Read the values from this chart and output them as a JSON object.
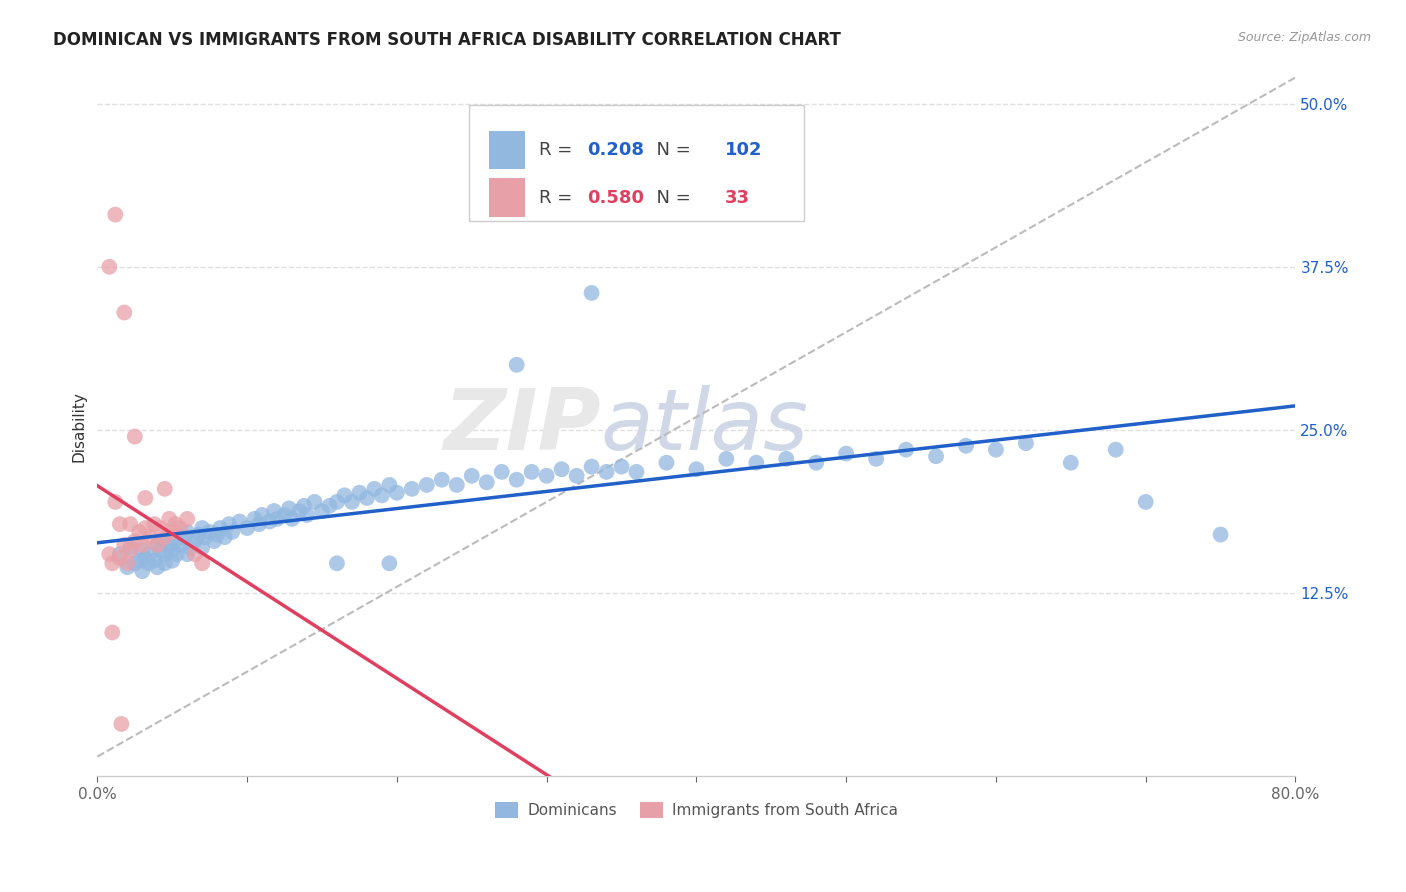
{
  "title": "DOMINICAN VS IMMIGRANTS FROM SOUTH AFRICA DISABILITY CORRELATION CHART",
  "source": "Source: ZipAtlas.com",
  "ylabel": "Disability",
  "xlim": [
    0.0,
    0.8
  ],
  "ylim": [
    0.0,
    0.52
  ],
  "blue_color": "#92b8e0",
  "pink_color": "#e8a0a8",
  "blue_line_color": "#2060c8",
  "pink_line_color": "#e04060",
  "watermark_zip": "ZIP",
  "watermark_atlas": "atlas",
  "legend_r_blue": "0.208",
  "legend_n_blue": "102",
  "legend_r_pink": "0.580",
  "legend_n_pink": "33",
  "blue_scatter_x": [
    0.015,
    0.02,
    0.022,
    0.025,
    0.028,
    0.03,
    0.03,
    0.032,
    0.034,
    0.035,
    0.038,
    0.04,
    0.04,
    0.042,
    0.043,
    0.045,
    0.045,
    0.048,
    0.05,
    0.05,
    0.052,
    0.053,
    0.055,
    0.058,
    0.06,
    0.06,
    0.062,
    0.065,
    0.068,
    0.07,
    0.07,
    0.072,
    0.075,
    0.078,
    0.08,
    0.082,
    0.085,
    0.088,
    0.09,
    0.095,
    0.1,
    0.105,
    0.108,
    0.11,
    0.115,
    0.118,
    0.12,
    0.125,
    0.128,
    0.13,
    0.135,
    0.138,
    0.14,
    0.145,
    0.15,
    0.155,
    0.16,
    0.165,
    0.17,
    0.175,
    0.18,
    0.185,
    0.19,
    0.195,
    0.2,
    0.21,
    0.22,
    0.23,
    0.24,
    0.25,
    0.26,
    0.27,
    0.28,
    0.29,
    0.3,
    0.31,
    0.32,
    0.33,
    0.34,
    0.35,
    0.36,
    0.38,
    0.4,
    0.42,
    0.44,
    0.46,
    0.48,
    0.5,
    0.52,
    0.54,
    0.56,
    0.58,
    0.6,
    0.62,
    0.65,
    0.68,
    0.7,
    0.75,
    0.28,
    0.33,
    0.16,
    0.195
  ],
  "blue_scatter_y": [
    0.155,
    0.145,
    0.16,
    0.148,
    0.15,
    0.142,
    0.158,
    0.152,
    0.148,
    0.155,
    0.15,
    0.162,
    0.145,
    0.158,
    0.165,
    0.155,
    0.148,
    0.162,
    0.158,
    0.15,
    0.165,
    0.155,
    0.162,
    0.168,
    0.155,
    0.172,
    0.16,
    0.165,
    0.17,
    0.16,
    0.175,
    0.168,
    0.172,
    0.165,
    0.17,
    0.175,
    0.168,
    0.178,
    0.172,
    0.18,
    0.175,
    0.182,
    0.178,
    0.185,
    0.18,
    0.188,
    0.182,
    0.185,
    0.19,
    0.182,
    0.188,
    0.192,
    0.185,
    0.195,
    0.188,
    0.192,
    0.195,
    0.2,
    0.195,
    0.202,
    0.198,
    0.205,
    0.2,
    0.208,
    0.202,
    0.205,
    0.208,
    0.212,
    0.208,
    0.215,
    0.21,
    0.218,
    0.212,
    0.218,
    0.215,
    0.22,
    0.215,
    0.222,
    0.218,
    0.222,
    0.218,
    0.225,
    0.22,
    0.228,
    0.225,
    0.228,
    0.225,
    0.232,
    0.228,
    0.235,
    0.23,
    0.238,
    0.235,
    0.24,
    0.225,
    0.235,
    0.195,
    0.17,
    0.3,
    0.355,
    0.148,
    0.148
  ],
  "pink_scatter_x": [
    0.008,
    0.01,
    0.012,
    0.015,
    0.015,
    0.018,
    0.02,
    0.022,
    0.022,
    0.025,
    0.028,
    0.03,
    0.032,
    0.035,
    0.038,
    0.04,
    0.042,
    0.045,
    0.048,
    0.05,
    0.052,
    0.055,
    0.06,
    0.065,
    0.07,
    0.008,
    0.012,
    0.018,
    0.025,
    0.032,
    0.045,
    0.01,
    0.016
  ],
  "pink_scatter_y": [
    0.155,
    0.148,
    0.195,
    0.152,
    0.178,
    0.162,
    0.148,
    0.178,
    0.158,
    0.165,
    0.172,
    0.162,
    0.175,
    0.168,
    0.178,
    0.162,
    0.175,
    0.168,
    0.182,
    0.172,
    0.178,
    0.175,
    0.182,
    0.155,
    0.148,
    0.375,
    0.415,
    0.34,
    0.245,
    0.198,
    0.205,
    0.095,
    0.025
  ],
  "title_fontsize": 12,
  "source_fontsize": 9,
  "axis_label_fontsize": 11,
  "tick_fontsize": 11,
  "background_color": "#ffffff",
  "grid_color": "#e0e0e0",
  "ref_line_color": "#bbbbbb"
}
